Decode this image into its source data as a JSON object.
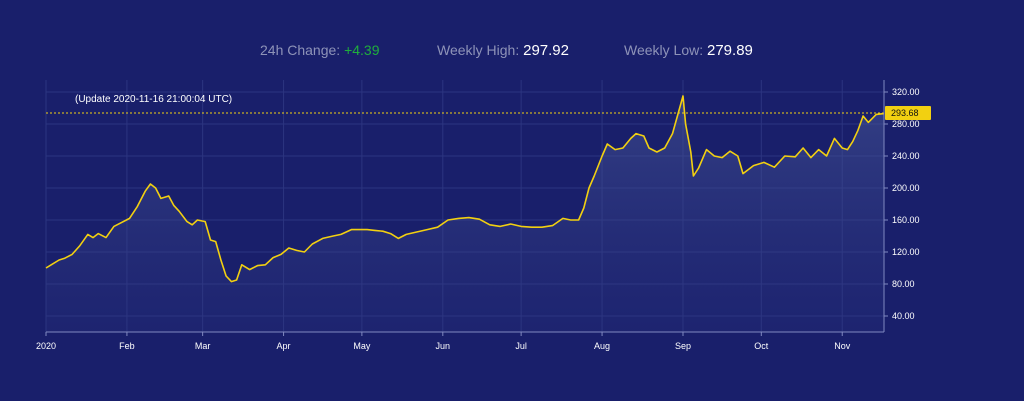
{
  "stats": {
    "change_label": "24h Change:",
    "change_value": "+4.39",
    "high_label": "Weekly High:",
    "high_value": "297.92",
    "low_label": "Weekly Low:",
    "low_value": "279.89"
  },
  "update_text": "(Update 2020-11-16 21:00:04 UTC)",
  "current_price_label": "293.68",
  "colors": {
    "background": "#191f6b",
    "line": "#f2d011",
    "positive": "#1fae3c",
    "price_badge": "#f2d011"
  },
  "chart_data": {
    "type": "area",
    "x_tick_labels": [
      "2020",
      "Feb",
      "Mar",
      "Apr",
      "May",
      "Jun",
      "Jul",
      "Aug",
      "Sep",
      "Oct",
      "Nov"
    ],
    "y_tick_labels": [
      "40.00",
      "80.00",
      "120.00",
      "160.00",
      "200.00",
      "240.00",
      "280.00",
      "320.00"
    ],
    "ylim": [
      20,
      335
    ],
    "current_price": 293.68,
    "grid": true,
    "x_range": [
      "2020-01-01",
      "2020-11-17"
    ],
    "series": [
      {
        "x": [
          "2020-01-01",
          "2020-01-03",
          "2020-01-06",
          "2020-01-08",
          "2020-01-11",
          "2020-01-14",
          "2020-01-17",
          "2020-01-19",
          "2020-01-21",
          "2020-01-24",
          "2020-01-27",
          "2020-01-30",
          "2020-02-02",
          "2020-02-05",
          "2020-02-08",
          "2020-02-10",
          "2020-02-12",
          "2020-02-14",
          "2020-02-17",
          "2020-02-19",
          "2020-02-21",
          "2020-02-24",
          "2020-02-26",
          "2020-02-28",
          "2020-03-02",
          "2020-03-04",
          "2020-03-06",
          "2020-03-08",
          "2020-03-10",
          "2020-03-12",
          "2020-03-14",
          "2020-03-16",
          "2020-03-19",
          "2020-03-22",
          "2020-03-25",
          "2020-03-28",
          "2020-03-31",
          "2020-04-03",
          "2020-04-06",
          "2020-04-09",
          "2020-04-12",
          "2020-04-16",
          "2020-04-20",
          "2020-04-23",
          "2020-04-27",
          "2020-04-30",
          "2020-05-03",
          "2020-05-06",
          "2020-05-09",
          "2020-05-12",
          "2020-05-15",
          "2020-05-18",
          "2020-05-22",
          "2020-05-26",
          "2020-05-30",
          "2020-06-03",
          "2020-06-07",
          "2020-06-11",
          "2020-06-15",
          "2020-06-19",
          "2020-06-23",
          "2020-06-27",
          "2020-07-01",
          "2020-07-05",
          "2020-07-09",
          "2020-07-13",
          "2020-07-17",
          "2020-07-20",
          "2020-07-23",
          "2020-07-25",
          "2020-07-27",
          "2020-07-29",
          "2020-08-01",
          "2020-08-03",
          "2020-08-06",
          "2020-08-09",
          "2020-08-12",
          "2020-08-14",
          "2020-08-17",
          "2020-08-19",
          "2020-08-22",
          "2020-08-25",
          "2020-08-28",
          "2020-09-01",
          "2020-09-02",
          "2020-09-04",
          "2020-09-05",
          "2020-09-07",
          "2020-09-10",
          "2020-09-13",
          "2020-09-16",
          "2020-09-19",
          "2020-09-22",
          "2020-09-24",
          "2020-09-28",
          "2020-10-02",
          "2020-10-06",
          "2020-10-10",
          "2020-10-14",
          "2020-10-17",
          "2020-10-20",
          "2020-10-23",
          "2020-10-26",
          "2020-10-29",
          "2020-11-01",
          "2020-11-03",
          "2020-11-05",
          "2020-11-07",
          "2020-11-09",
          "2020-11-11",
          "2020-11-14",
          "2020-11-17"
        ],
        "y": [
          100,
          104,
          110,
          112,
          117,
          128,
          142,
          138,
          143,
          138,
          152,
          157,
          162,
          177,
          196,
          205,
          200,
          187,
          190,
          178,
          171,
          158,
          154,
          160,
          158,
          135,
          133,
          110,
          90,
          83,
          85,
          104,
          98,
          103,
          104,
          113,
          117,
          125,
          122,
          120,
          130,
          137,
          140,
          142,
          148,
          148,
          148,
          147,
          146,
          143,
          137,
          142,
          145,
          148,
          151,
          160,
          162,
          163,
          161,
          154,
          152,
          155,
          152,
          151,
          151,
          153,
          162,
          160,
          160,
          175,
          200,
          215,
          240,
          255,
          248,
          250,
          262,
          268,
          265,
          250,
          245,
          250,
          268,
          315,
          280,
          245,
          215,
          225,
          248,
          240,
          238,
          246,
          240,
          218,
          228,
          232,
          226,
          240,
          239,
          250,
          238,
          248,
          240,
          262,
          250,
          248,
          258,
          272,
          290,
          282,
          292,
          293
        ]
      }
    ]
  }
}
